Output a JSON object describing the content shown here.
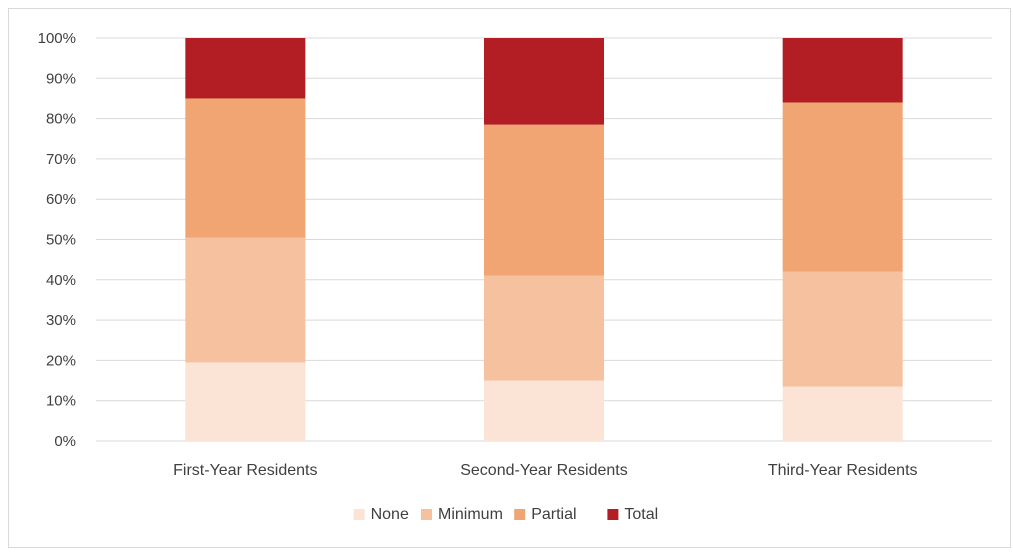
{
  "chart_data": {
    "type": "bar",
    "stacked": true,
    "categories": [
      "First-Year Residents",
      "Second-Year Residents",
      "Third-Year Residents"
    ],
    "series": [
      {
        "name": "None",
        "color": "#fbe3d6",
        "values": [
          19.5,
          15,
          13.5
        ]
      },
      {
        "name": "Minimum",
        "color": "#f6c19f",
        "values": [
          31,
          26,
          28.5
        ]
      },
      {
        "name": "Partial",
        "color": "#f0a572",
        "values": [
          34.5,
          37.5,
          42
        ]
      },
      {
        "name": "Total",
        "color": "#b21e23",
        "values": [
          15,
          21.5,
          16
        ]
      }
    ],
    "ylim": [
      0,
      100
    ],
    "yticks": [
      "0%",
      "10%",
      "20%",
      "30%",
      "40%",
      "50%",
      "60%",
      "70%",
      "80%",
      "90%",
      "100%"
    ],
    "grid": true,
    "legend_position": "bottom"
  }
}
